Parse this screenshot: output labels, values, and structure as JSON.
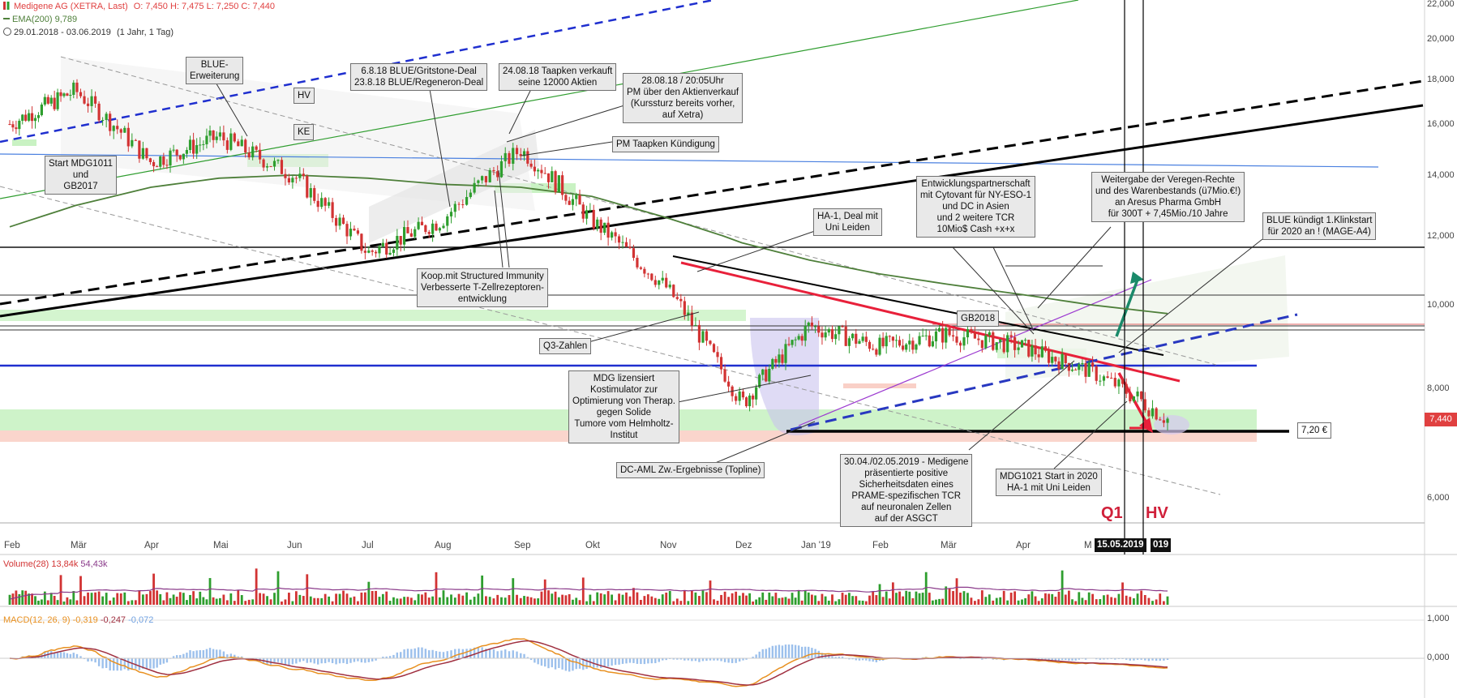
{
  "header": {
    "instrument": "Medigene AG (XETRA, Last)",
    "ohlc": "O: 7,450  H: 7,475  L: 7,250  C: 7,440",
    "ema": "EMA(200)",
    "ema_value": "9,789",
    "range": "29.01.2018 - 03.06.2019",
    "range_detail": "(1 Jahr, 1 Tag)"
  },
  "colors": {
    "up": "#2e9e2e",
    "down": "#d23333",
    "ema": "#4e7f3a",
    "blue_line": "#1f2fcf",
    "red_trend": "#e8203a",
    "green_zone": "#b8f0b0",
    "red_zone": "#f8c8c0"
  },
  "price_axis": {
    "ticks": [
      "22,000",
      "20,000",
      "18,000",
      "16,000",
      "14,000",
      "12,000",
      "10,000",
      "8,000",
      "6,000"
    ],
    "last_price": "7,440"
  },
  "time_axis": [
    "Feb",
    "Mär",
    "Apr",
    "Mai",
    "Jun",
    "Jul",
    "Aug",
    "Sep",
    "Okt",
    "Nov",
    "Dez",
    "Jan '19",
    "Feb",
    "Mär",
    "Apr",
    "M"
  ],
  "notes": [
    {
      "id": "blue-erweiterung",
      "text": "BLUE-\nErweiterung"
    },
    {
      "id": "hv-2018",
      "text": "HV"
    },
    {
      "id": "ke",
      "text": "KE"
    },
    {
      "id": "start-mdg1011",
      "text": "Start MDG1011\nund\nGB2017"
    },
    {
      "id": "gritstone-regeneron",
      "text": "6.8.18 BLUE/Gritstone-Deal\n23.8.18 BLUE/Regeneron-Deal"
    },
    {
      "id": "taapken-verkauft",
      "text": "24.08.18 Taapken verkauft\nseine 12000 Aktien"
    },
    {
      "id": "pm-aktienverkauf",
      "text": "28.08.18 / 20:05Uhr\nPM über den Aktienverkauf\n(Kurssturz bereits vorher,\nauf Xetra)"
    },
    {
      "id": "pm-kuendigung",
      "text": "PM Taapken Kündigung"
    },
    {
      "id": "koop-structured",
      "text": "Koop.mit Structured Immunity\nVerbesserte T-Zellrezeptoren-\nentwicklung"
    },
    {
      "id": "q3-zahlen",
      "text": "Q3-Zahlen"
    },
    {
      "id": "ha1-deal",
      "text": "HA-1, Deal mit\nUni Leiden"
    },
    {
      "id": "mdg-lizensiert",
      "text": "MDG lizensiert\nKostimulator zur\nOptimierung von Therap.\ngegen Solide\nTumore vom Helmholtz-\nInstitut"
    },
    {
      "id": "dc-aml",
      "text": "DC-AML  Zw.-Ergebnisse (Topline)"
    },
    {
      "id": "cytovant",
      "text": "Entwicklungspartnerschaft\nmit Cytovant für NY-ESO-1\nund DC in Asien\nund 2 weitere TCR\n10Mio$ Cash +x+x"
    },
    {
      "id": "gb2018",
      "text": "GB2018"
    },
    {
      "id": "veregen",
      "text": "Weitergabe der Veregen-Rechte\nund des Warenbestands (ü7Mio.€!)\nan Aresus Pharma GmbH\nfür 300T + 7,45Mio./10 Jahre"
    },
    {
      "id": "blue-klinkstart",
      "text": "BLUE kündigt 1.Klinkstart\nfür 2020 an ! (MAGE-A4)"
    },
    {
      "id": "asgct",
      "text": "30.04./02.05.2019 - Medigene\npräsentierte positive\nSicherheitsdaten eines\nPRAME-spezifischen TCR\nauf neuronalen Zellen\nauf der ASGCT"
    },
    {
      "id": "mdg1021",
      "text": "MDG1021 Start in 2020\nHA-1 mit Uni Leiden"
    },
    {
      "id": "support-720",
      "text": "7,20 €"
    }
  ],
  "tags": {
    "q1": "Q1",
    "hv": "HV",
    "date_cursor": "15.05.2019",
    "date_cursor_right": "019"
  },
  "volume": {
    "label": "Volume(28)",
    "v1": "13,84k",
    "v2": "54,43k"
  },
  "macd": {
    "label": "MACD(12, 26, 9)",
    "v1": "-0,319",
    "v2": "-0,247",
    "v3": "-0,072",
    "ticks": [
      "1,000",
      "0,000"
    ]
  },
  "chart_data": {
    "type": "line",
    "title": "Medigene AG (XETRA, Last)",
    "x": [
      "2018-02",
      "2018-03",
      "2018-04",
      "2018-05",
      "2018-06",
      "2018-07",
      "2018-08",
      "2018-09",
      "2018-10",
      "2018-11",
      "2018-12",
      "2019-01",
      "2019-02",
      "2019-03",
      "2019-04",
      "2019-05",
      "2019-06"
    ],
    "series": [
      {
        "name": "Medigene AG (XETRA, Last)",
        "values": [
          16.0,
          17.5,
          14.5,
          15.5,
          14.0,
          11.5,
          12.5,
          15.0,
          12.5,
          10.5,
          7.7,
          9.5,
          9.0,
          9.3,
          9.0,
          8.4,
          7.44
        ]
      },
      {
        "name": "EMA(200)",
        "values": [
          12.3,
          13.0,
          13.6,
          13.9,
          14.0,
          13.9,
          13.7,
          13.6,
          13.3,
          12.6,
          11.8,
          11.3,
          10.9,
          10.6,
          10.3,
          10.0,
          9.79
        ]
      }
    ],
    "ylim": [
      5.0,
      22.0
    ],
    "support_level": 7.2,
    "grid": false
  }
}
